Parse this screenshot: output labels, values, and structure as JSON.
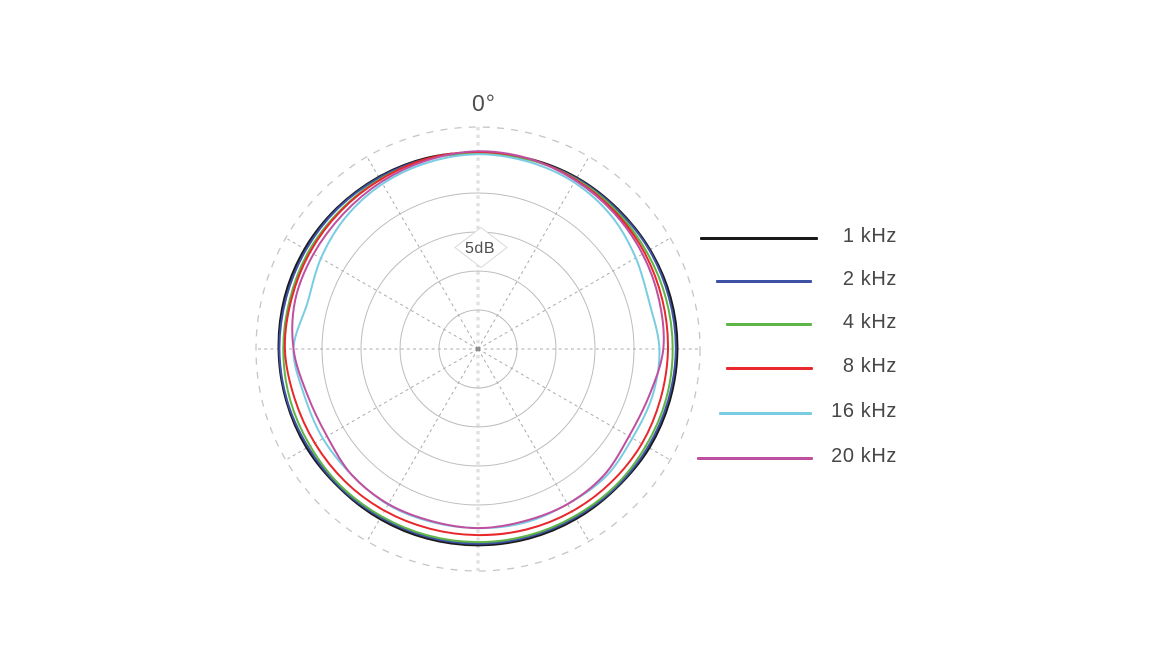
{
  "chart_data": {
    "type": "line",
    "subtype": "polar-pattern",
    "top_angle_label": "0°",
    "radial_axis_label": "5dB",
    "db_per_ring": 5,
    "grid": true,
    "legend_position": "right",
    "angles_deg": [
      0,
      15,
      30,
      45,
      60,
      75,
      90,
      105,
      120,
      135,
      150,
      165,
      180,
      195,
      210,
      225,
      240,
      255,
      270,
      285,
      300,
      315,
      330,
      345
    ],
    "series": [
      {
        "name": "1 kHz",
        "color": "#1a1a1a",
        "db": [
          -0.1,
          0,
          0.1,
          0.1,
          0.2,
          0.3,
          0.3,
          0.2,
          0.1,
          -0.1,
          -0.1,
          -0.1,
          -0.1,
          -0.1,
          -0.1,
          -0.1,
          0.1,
          0.2,
          0.3,
          0.4,
          0.4,
          0.3,
          0.2,
          0.1
        ]
      },
      {
        "name": "2 kHz",
        "color": "#3f51a5",
        "db": [
          -0.2,
          -0.1,
          0,
          0,
          0.1,
          0.1,
          0.1,
          0,
          -0.1,
          -0.2,
          -0.3,
          -0.3,
          -0.3,
          -0.3,
          -0.3,
          -0.2,
          -0.1,
          0.1,
          0.2,
          0.2,
          0.2,
          0.2,
          0.1,
          0
        ]
      },
      {
        "name": "4 kHz",
        "color": "#5fb548",
        "db": [
          -0.1,
          -0.1,
          -0.1,
          -0.2,
          -0.3,
          -0.3,
          -0.3,
          -0.3,
          -0.4,
          -0.4,
          -0.5,
          -0.5,
          -0.5,
          -0.5,
          -0.5,
          -0.4,
          -0.4,
          -0.3,
          -0.3,
          -0.3,
          -0.2,
          -0.2,
          -0.1,
          -0.1
        ]
      },
      {
        "name": "8 kHz",
        "color": "#e8282d",
        "db": [
          0,
          0,
          -0.2,
          -0.4,
          -0.6,
          -0.8,
          -0.9,
          -1,
          -1,
          -1.1,
          -1.2,
          -1.3,
          -1.4,
          -1.4,
          -1.3,
          -1.2,
          -1.1,
          -0.9,
          -0.5,
          -0.5,
          -0.4,
          -0.3,
          -0.2,
          0
        ]
      },
      {
        "name": "16 kHz",
        "color": "#7acce2",
        "db": [
          -0.3,
          -0.4,
          -0.6,
          -1.1,
          -1.9,
          -2.5,
          -2,
          -2.1,
          -2.4,
          -2.1,
          -2.3,
          -2.2,
          -2.3,
          -2.3,
          -2.2,
          -2.4,
          -2.3,
          -2.2,
          -1.6,
          -2.6,
          -2,
          -1.3,
          -0.8,
          -0.5
        ]
      },
      {
        "name": "20 kHz",
        "color": "#bf4f9f",
        "db": [
          0.1,
          0,
          -0.3,
          -0.6,
          -0.9,
          -1.2,
          -1.5,
          -2.5,
          -2.9,
          -2.4,
          -2.3,
          -2.4,
          -2.3,
          -2.4,
          -2.3,
          -2.4,
          -2.9,
          -2.6,
          -1.6,
          -1,
          -0.9,
          -0.8,
          -0.5,
          -0.2
        ]
      }
    ]
  }
}
